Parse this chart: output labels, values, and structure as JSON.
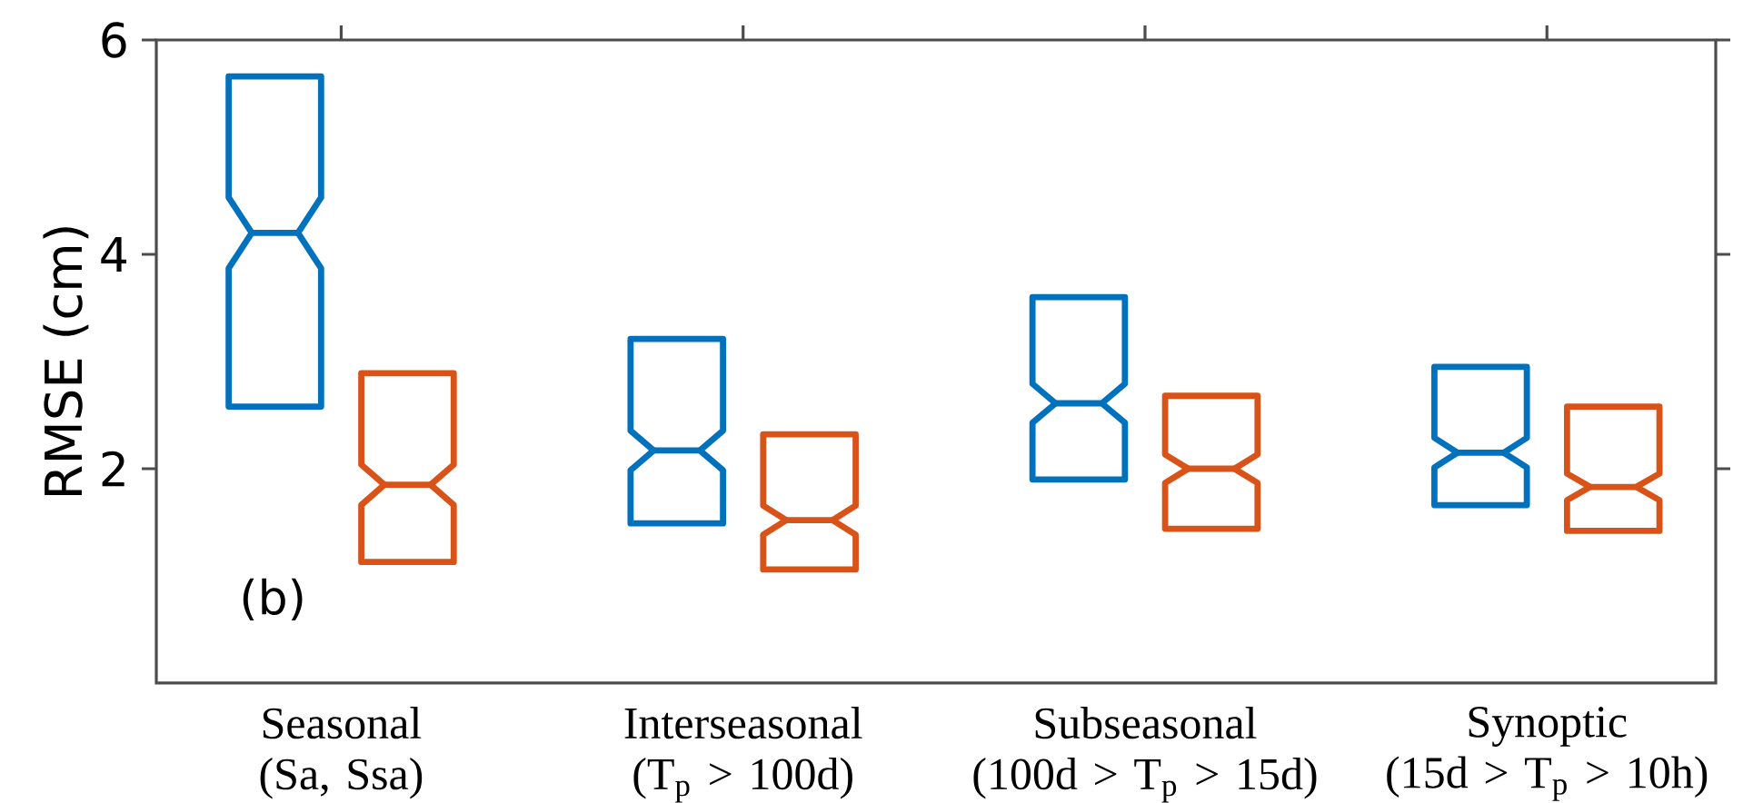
{
  "chart_data": {
    "type": "box",
    "ylabel": "RMSE (cm)",
    "categories": [
      "Seasonal (Sa, Ssa)",
      "Interseasonal (T$_{p}$ > 100d)",
      "Subseasonal (100d > T$_{p}$ > 15d)",
      "Synoptic (15d > T$_{p}$ > 10h)"
    ],
    "ylim": [
      0,
      6
    ],
    "yticks": [
      2,
      4,
      6
    ],
    "series": [
      {
        "color": "#0072bd",
        "boxes": [
          {
            "low": 2.58,
            "q1": 2.58,
            "median": 4.2,
            "q3": 5.66,
            "high": 5.66
          },
          {
            "low": 1.49,
            "q1": 1.49,
            "median": 2.17,
            "q3": 3.21,
            "high": 3.21
          },
          {
            "low": 1.9,
            "q1": 1.9,
            "median": 2.61,
            "q3": 3.6,
            "high": 3.6
          },
          {
            "low": 1.66,
            "q1": 1.66,
            "median": 2.15,
            "q3": 2.95,
            "high": 2.95
          }
        ]
      },
      {
        "color": "#d95319",
        "boxes": [
          {
            "low": 1.13,
            "q1": 1.13,
            "median": 1.85,
            "q3": 2.89,
            "high": 2.89
          },
          {
            "low": 1.06,
            "q1": 1.06,
            "median": 1.52,
            "q3": 2.32,
            "high": 2.32
          },
          {
            "low": 1.44,
            "q1": 1.44,
            "median": 2.0,
            "q3": 2.68,
            "high": 2.68
          },
          {
            "low": 1.42,
            "q1": 1.42,
            "median": 1.83,
            "q3": 2.58,
            "high": 2.58
          }
        ]
      }
    ],
    "annotations": [
      "(b)"
    ]
  }
}
